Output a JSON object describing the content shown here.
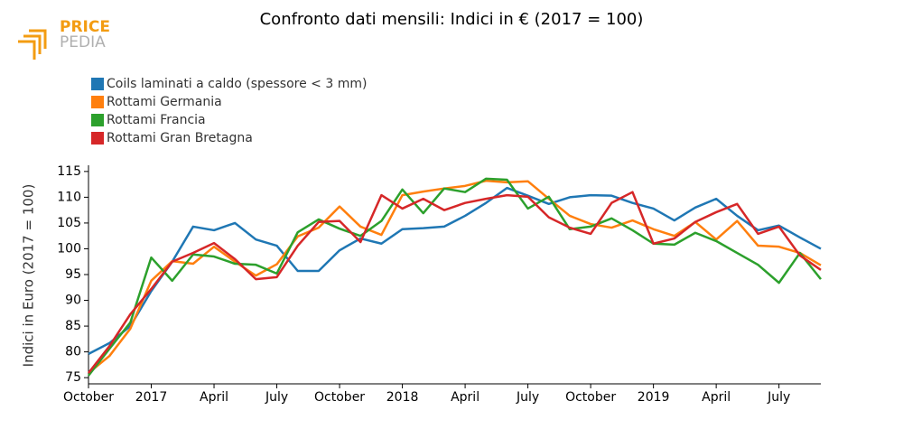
{
  "logo": {
    "top": "PRICE",
    "bottom": "PEDIA"
  },
  "chart_data": {
    "type": "line",
    "title": "Confronto dati mensili: Indici in € (2017 = 100)",
    "ylabel": "Indici in Euro (2017 = 100)",
    "categories": [
      "October",
      null,
      null,
      "2017",
      null,
      null,
      "April",
      null,
      null,
      "July",
      null,
      null,
      "October",
      null,
      null,
      "2018",
      null,
      null,
      "April",
      null,
      null,
      "July",
      null,
      null,
      "October",
      null,
      null,
      "2019",
      null,
      null,
      "April",
      null,
      null,
      "July",
      null,
      null
    ],
    "ylim": [
      73.8,
      116.2
    ],
    "yticks": [
      75,
      80,
      85,
      90,
      95,
      100,
      105,
      110,
      115
    ],
    "grid": false,
    "legend": "top-left",
    "series": [
      {
        "name": "Coils laminati a caldo (spessore < 3 mm)",
        "color": "#1f77b4",
        "values": [
          79.6,
          81.7,
          85,
          91.8,
          97.5,
          104.3,
          103.6,
          105,
          101.8,
          100.6,
          95.7,
          95.7,
          99.7,
          102,
          101,
          103.8,
          104,
          104.3,
          106.4,
          108.9,
          111.8,
          110.3,
          108.7,
          110,
          110.4,
          110.3,
          108.9,
          107.8,
          105.5,
          108,
          109.7,
          106.4,
          103.6,
          104.5,
          102.2,
          100
        ]
      },
      {
        "name": "Rottami Germania",
        "color": "#ff7f0e",
        "values": [
          75.9,
          79.2,
          84.5,
          93.8,
          97.6,
          97.1,
          100.4,
          97.5,
          94.8,
          97,
          102.4,
          104.1,
          108.2,
          104.3,
          102.7,
          110.4,
          111.1,
          111.7,
          112.2,
          113.2,
          112.9,
          113.1,
          109.7,
          106.4,
          104.8,
          104.1,
          105.5,
          103.8,
          102.5,
          105.2,
          101.8,
          105.4,
          100.6,
          100.4,
          99.2,
          96.8
        ]
      },
      {
        "name": "Rottami Francia",
        "color": "#2ca02c",
        "values": [
          75.4,
          80.6,
          85.7,
          98.3,
          93.8,
          98.9,
          98.5,
          97.1,
          96.9,
          95.2,
          103.2,
          105.7,
          103.9,
          102.5,
          105.4,
          111.5,
          106.9,
          111.7,
          111,
          113.6,
          113.4,
          107.8,
          110.1,
          103.8,
          104.3,
          105.9,
          103.6,
          101,
          100.8,
          103.1,
          101.5,
          99.2,
          96.9,
          93.4,
          99.2,
          94.1
        ]
      },
      {
        "name": "Rottami Gran Bretagna",
        "color": "#d62728",
        "values": [
          75.9,
          81.1,
          87.3,
          92.2,
          97.5,
          99.2,
          101.1,
          98,
          94.1,
          94.5,
          100.6,
          105.2,
          105.4,
          101.3,
          110.4,
          107.8,
          109.7,
          107.5,
          108.9,
          109.7,
          110.4,
          110.1,
          106.1,
          104.1,
          102.9,
          108.9,
          111,
          101,
          102,
          105.2,
          107.1,
          108.7,
          102.9,
          104.3,
          98.7,
          95.9
        ]
      }
    ]
  }
}
